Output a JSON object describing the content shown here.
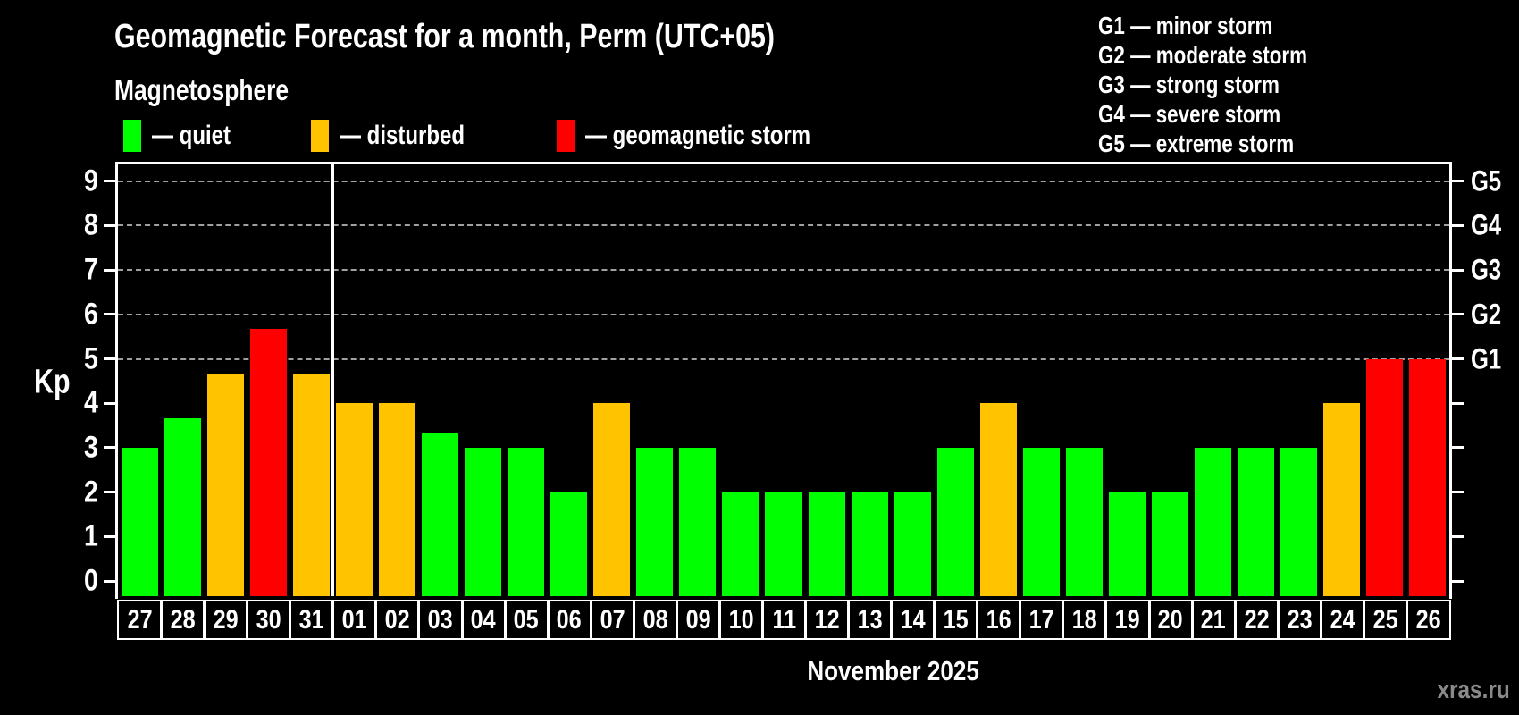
{
  "title": "Geomagnetic Forecast for a month, Perm (UTC+05)",
  "subtitle": "Magnetosphere",
  "legend": {
    "items": [
      {
        "key": "quiet",
        "label": "— quiet",
        "color": "#00ff00"
      },
      {
        "key": "disturbed",
        "label": "— disturbed",
        "color": "#ffc300"
      },
      {
        "key": "storm",
        "label": "— geomagnetic storm",
        "color": "#ff0000"
      }
    ]
  },
  "storm_scale_legend": [
    "G1 — minor storm",
    "G2 — moderate storm",
    "G3 — strong storm",
    "G4 — severe storm",
    "G5 — extreme storm"
  ],
  "watermark": "xras.ru",
  "chart_data": {
    "type": "bar",
    "title": "Geomagnetic Forecast for a month, Perm (UTC+05)",
    "ylabel": "Kp",
    "xlabel": "November 2025",
    "ylim": [
      0,
      9
    ],
    "yticks": [
      0,
      1,
      2,
      3,
      4,
      5,
      6,
      7,
      8,
      9
    ],
    "gridlines_at": [
      5,
      6,
      7,
      8,
      9
    ],
    "grid": "dashed gray, only at storm levels G1-G5",
    "legend_position": "top",
    "right_axis_labels": [
      {
        "kp": 5,
        "label": "G1"
      },
      {
        "kp": 6,
        "label": "G2"
      },
      {
        "kp": 7,
        "label": "G3"
      },
      {
        "kp": 8,
        "label": "G4"
      },
      {
        "kp": 9,
        "label": "G5"
      }
    ],
    "month_separator_after_index": 4,
    "categories": [
      "27",
      "28",
      "29",
      "30",
      "31",
      "01",
      "02",
      "03",
      "04",
      "05",
      "06",
      "07",
      "08",
      "09",
      "10",
      "11",
      "12",
      "13",
      "14",
      "15",
      "16",
      "17",
      "18",
      "19",
      "20",
      "21",
      "22",
      "23",
      "24",
      "25",
      "26"
    ],
    "values": [
      3.0,
      3.67,
      4.67,
      5.67,
      4.67,
      4.0,
      4.0,
      3.33,
      3.0,
      3.0,
      2.0,
      4.0,
      3.0,
      3.0,
      2.0,
      2.0,
      2.0,
      2.0,
      2.0,
      3.0,
      4.0,
      3.0,
      3.0,
      2.0,
      2.0,
      3.0,
      3.0,
      3.0,
      4.0,
      5.0,
      5.0
    ],
    "status": [
      "quiet",
      "quiet",
      "disturbed",
      "storm",
      "disturbed",
      "disturbed",
      "disturbed",
      "quiet",
      "quiet",
      "quiet",
      "quiet",
      "disturbed",
      "quiet",
      "quiet",
      "quiet",
      "quiet",
      "quiet",
      "quiet",
      "quiet",
      "quiet",
      "disturbed",
      "quiet",
      "quiet",
      "quiet",
      "quiet",
      "quiet",
      "quiet",
      "quiet",
      "disturbed",
      "storm",
      "storm"
    ],
    "colors": {
      "quiet": "#00ff00",
      "disturbed": "#ffc300",
      "storm": "#ff0000"
    }
  }
}
